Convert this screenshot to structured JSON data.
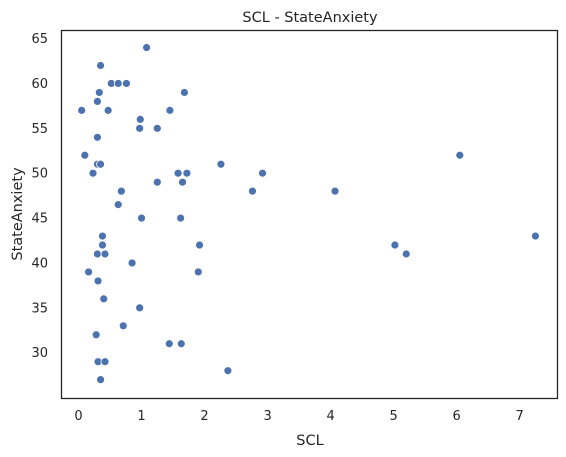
{
  "chart_data": {
    "type": "scatter",
    "title": "SCL - StateAnxiety",
    "xlabel": "SCL",
    "ylabel": "StateAnxiety",
    "xlim": [
      -0.27,
      7.6
    ],
    "ylim": [
      24.9,
      65.9
    ],
    "xticks": [
      "0",
      "1",
      "2",
      "3",
      "4",
      "5",
      "6",
      "7"
    ],
    "yticks": [
      "30",
      "35",
      "40",
      "45",
      "50",
      "55",
      "60",
      "65"
    ],
    "grid": false,
    "point_color": "#4c72b0",
    "points": [
      [
        1.08,
        64
      ],
      [
        0.35,
        62
      ],
      [
        0.33,
        59
      ],
      [
        1.68,
        59
      ],
      [
        0.52,
        60
      ],
      [
        0.63,
        60
      ],
      [
        0.76,
        60
      ],
      [
        0.05,
        57
      ],
      [
        0.3,
        58
      ],
      [
        0.47,
        57
      ],
      [
        1.45,
        57
      ],
      [
        0.98,
        56
      ],
      [
        0.97,
        55
      ],
      [
        1.25,
        55
      ],
      [
        0.3,
        54
      ],
      [
        0.1,
        52
      ],
      [
        6.05,
        52
      ],
      [
        0.3,
        51
      ],
      [
        0.35,
        51
      ],
      [
        2.26,
        51
      ],
      [
        0.23,
        50
      ],
      [
        1.58,
        50
      ],
      [
        1.72,
        50
      ],
      [
        2.92,
        50
      ],
      [
        1.25,
        49
      ],
      [
        1.65,
        49
      ],
      [
        0.68,
        48
      ],
      [
        2.76,
        48
      ],
      [
        4.07,
        48
      ],
      [
        0.63,
        46.5
      ],
      [
        1.0,
        45
      ],
      [
        1.62,
        45
      ],
      [
        0.38,
        43
      ],
      [
        7.25,
        43
      ],
      [
        0.38,
        42
      ],
      [
        1.92,
        42
      ],
      [
        5.02,
        42
      ],
      [
        0.3,
        41
      ],
      [
        0.42,
        41
      ],
      [
        5.2,
        41
      ],
      [
        0.85,
        40
      ],
      [
        0.16,
        39
      ],
      [
        1.9,
        39
      ],
      [
        0.31,
        38
      ],
      [
        0.4,
        36
      ],
      [
        0.97,
        35
      ],
      [
        0.71,
        33
      ],
      [
        0.28,
        32
      ],
      [
        1.44,
        31
      ],
      [
        1.63,
        31
      ],
      [
        0.31,
        29
      ],
      [
        0.42,
        29
      ],
      [
        2.37,
        28
      ],
      [
        0.35,
        27
      ]
    ]
  }
}
